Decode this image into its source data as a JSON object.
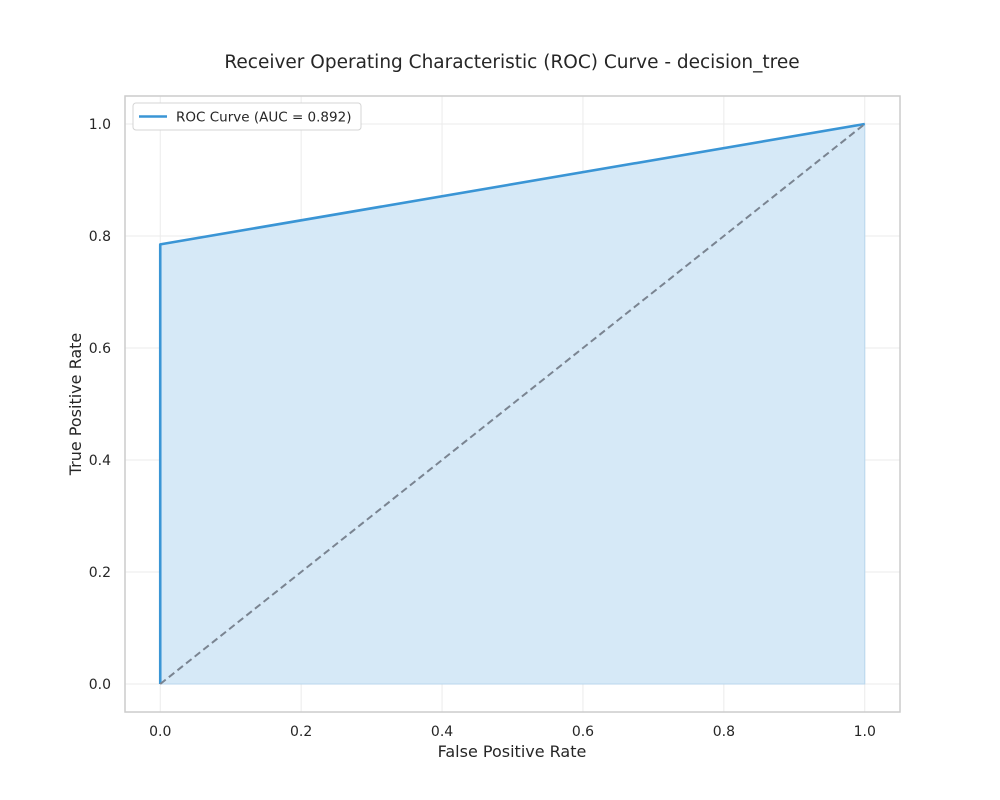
{
  "chart_data": {
    "type": "line",
    "title": "Receiver Operating Characteristic (ROC) Curve - decision_tree",
    "xlabel": "False Positive Rate",
    "ylabel": "True Positive Rate",
    "xlim": [
      -0.05,
      1.05
    ],
    "ylim": [
      -0.05,
      1.05
    ],
    "xticks": [
      0.0,
      0.2,
      0.4,
      0.6,
      0.8,
      1.0
    ],
    "yticks": [
      0.0,
      0.2,
      0.4,
      0.6,
      0.8,
      1.0
    ],
    "xtick_labels": [
      "0.0",
      "0.2",
      "0.4",
      "0.6",
      "0.8",
      "1.0"
    ],
    "ytick_labels": [
      "0.0",
      "0.2",
      "0.4",
      "0.6",
      "0.8",
      "1.0"
    ],
    "grid": true,
    "legend_position": "top-left",
    "series": [
      {
        "name": "ROC Curve (AUC = 0.892)",
        "x": [
          0.0,
          0.0,
          1.0
        ],
        "y": [
          0.0,
          0.785,
          1.0
        ],
        "color": "#3a95d5",
        "fill": true,
        "fill_color": "#d6e9f7"
      },
      {
        "x": [
          0.0,
          1.0
        ],
        "y": [
          0.0,
          1.0
        ],
        "color": "#7a8491",
        "dashed": true
      }
    ]
  }
}
